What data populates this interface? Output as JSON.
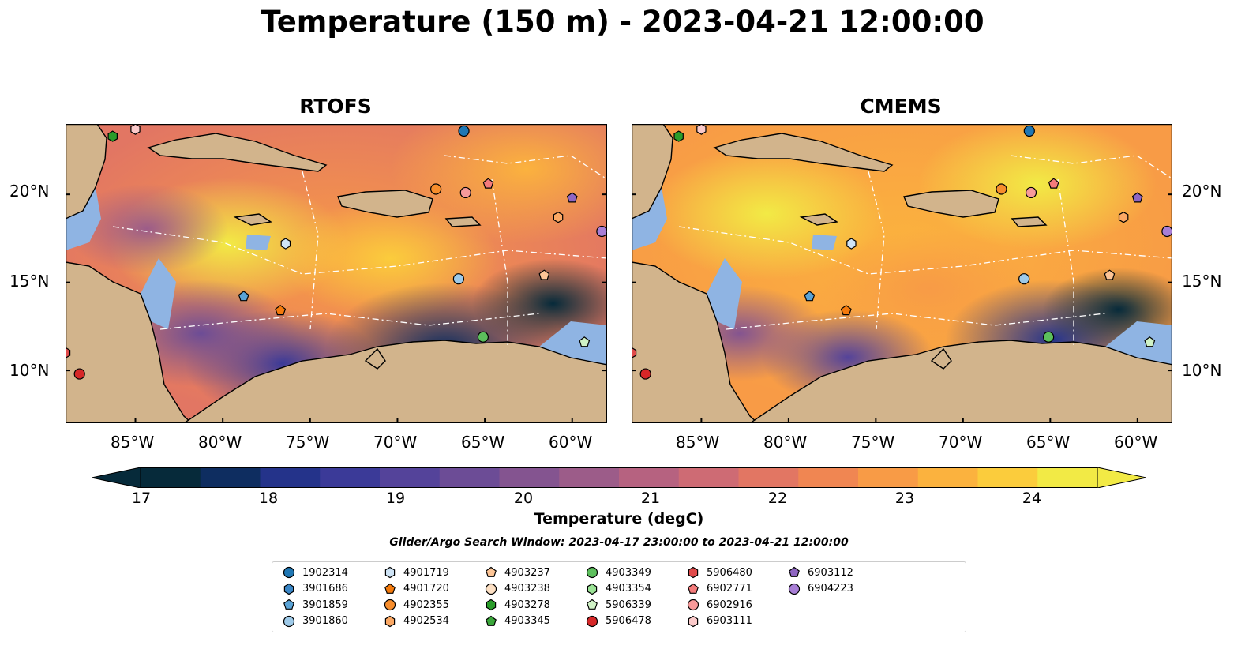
{
  "title": "Temperature (150 m) - 2023-04-21 12:00:00",
  "panels": [
    {
      "title": "RTOFS"
    },
    {
      "title": "CMEMS"
    }
  ],
  "map": {
    "lon_range": [
      -89,
      -58
    ],
    "lat_range": [
      7,
      24
    ],
    "lon_ticks": [
      "85°W",
      "80°W",
      "75°W",
      "70°W",
      "65°W",
      "60°W"
    ],
    "lat_ticks": [
      "20°N",
      "15°N",
      "10°N"
    ],
    "colors": {
      "land": "#d2b48c",
      "shelf": "#8fb4e3",
      "deep_water": "#08222f",
      "warm": "#f5e63c"
    }
  },
  "colorbar": {
    "label": "Temperature (degC)",
    "ticks": [
      "17",
      "18",
      "19",
      "20",
      "21",
      "22",
      "23",
      "24"
    ],
    "range": [
      16.75,
      24.5
    ],
    "colormap": "thermal",
    "colors": [
      "#062a3a",
      "#0e2d60",
      "#24338a",
      "#3b3a98",
      "#54439a",
      "#6c4c96",
      "#845490",
      "#9c5c89",
      "#b66280",
      "#ce6b74",
      "#e27663",
      "#f08652",
      "#f89b46",
      "#fbb23e",
      "#fbcc3c",
      "#f2ea45"
    ]
  },
  "search_window": "Glider/Argo Search Window: 2023-04-17 23:00:00 to 2023-04-21 12:00:00",
  "legend": [
    {
      "id": "1902314",
      "marker": "circle",
      "color": "#1f77b4"
    },
    {
      "id": "3901686",
      "marker": "hexagon",
      "color": "#3a86c6"
    },
    {
      "id": "3901859",
      "marker": "pentagon",
      "color": "#5aa3d6"
    },
    {
      "id": "3901860",
      "marker": "circle",
      "color": "#9ecae9"
    },
    {
      "id": "4901719",
      "marker": "hexagon",
      "color": "#cfe4f6"
    },
    {
      "id": "4901720",
      "marker": "pentagon",
      "color": "#f47a0c"
    },
    {
      "id": "4902355",
      "marker": "circle",
      "color": "#f78d2c"
    },
    {
      "id": "4902534",
      "marker": "hexagon",
      "color": "#fba864"
    },
    {
      "id": "4903237",
      "marker": "pentagon",
      "color": "#fdc596"
    },
    {
      "id": "4903238",
      "marker": "circle",
      "color": "#fde0c4"
    },
    {
      "id": "4903278",
      "marker": "hexagon",
      "color": "#2a9c2a"
    },
    {
      "id": "4903345",
      "marker": "pentagon",
      "color": "#3aa63a"
    },
    {
      "id": "4903349",
      "marker": "circle",
      "color": "#5cbf5c"
    },
    {
      "id": "4903354",
      "marker": "hexagon",
      "color": "#9be396"
    },
    {
      "id": "5906339",
      "marker": "pentagon",
      "color": "#d0f2c6"
    },
    {
      "id": "5906478",
      "marker": "circle",
      "color": "#d62728"
    },
    {
      "id": "5906480",
      "marker": "hexagon",
      "color": "#e04a4a"
    },
    {
      "id": "6902771",
      "marker": "pentagon",
      "color": "#f47b7b"
    },
    {
      "id": "6902916",
      "marker": "circle",
      "color": "#f79a9a"
    },
    {
      "id": "6903111",
      "marker": "hexagon",
      "color": "#fbcaca"
    },
    {
      "id": "6903112",
      "marker": "pentagon",
      "color": "#8f66c2"
    },
    {
      "id": "6904223",
      "marker": "circle",
      "color": "#a87ed6"
    }
  ],
  "floats": [
    {
      "id": "4903278",
      "lon": -86.3,
      "lat": 23.3
    },
    {
      "id": "6903111",
      "lon": -85.0,
      "lat": 23.7
    },
    {
      "id": "1902314",
      "lon": -66.2,
      "lat": 23.6
    },
    {
      "id": "6902771",
      "lon": -64.8,
      "lat": 20.6
    },
    {
      "id": "6902916",
      "lon": -66.1,
      "lat": 20.1
    },
    {
      "id": "4902355",
      "lon": -67.8,
      "lat": 20.3
    },
    {
      "id": "6903112",
      "lon": -60.0,
      "lat": 19.8
    },
    {
      "id": "4902534",
      "lon": -60.8,
      "lat": 18.7
    },
    {
      "id": "6904223",
      "lon": -58.3,
      "lat": 17.9
    },
    {
      "id": "4901719",
      "lon": -76.4,
      "lat": 17.2
    },
    {
      "id": "3901860",
      "lon": -66.5,
      "lat": 15.2
    },
    {
      "id": "4903237",
      "lon": -61.6,
      "lat": 15.4
    },
    {
      "id": "3901859",
      "lon": -78.8,
      "lat": 14.2
    },
    {
      "id": "4901720",
      "lon": -76.7,
      "lat": 13.4
    },
    {
      "id": "4903349",
      "lon": -65.1,
      "lat": 11.9
    },
    {
      "id": "5906339",
      "lon": -59.3,
      "lat": 11.6
    },
    {
      "id": "5906478",
      "lon": -88.2,
      "lat": 9.8
    },
    {
      "id": "5906480",
      "lon": -89.0,
      "lat": 11.0
    }
  ]
}
